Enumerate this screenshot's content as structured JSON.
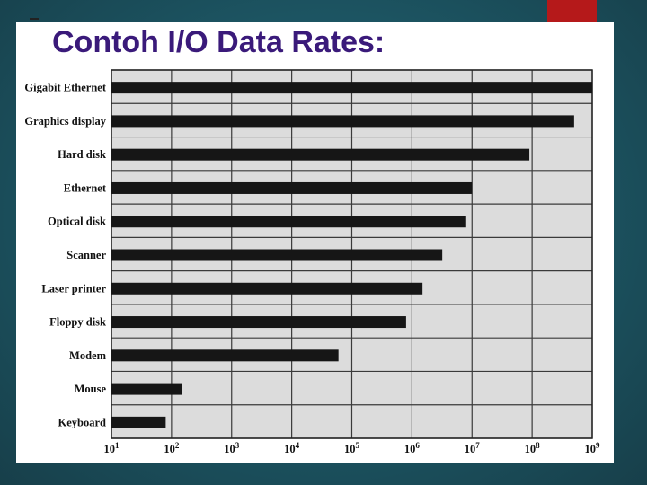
{
  "slide": {
    "title": "Contoh I/O Data Rates:"
  },
  "chart_data": {
    "type": "bar",
    "orientation": "horizontal",
    "scale": "log10",
    "categories": [
      "Gigabit Ethernet",
      "Graphics display",
      "Hard disk",
      "Ethernet",
      "Optical disk",
      "Scanner",
      "Laser printer",
      "Floppy disk",
      "Modem",
      "Mouse",
      "Keyboard"
    ],
    "values": [
      1000000000,
      500000000,
      90000000,
      10000000,
      8000000,
      3200000,
      1500000,
      800000,
      60000,
      150,
      80
    ],
    "xlim": [
      10,
      1000000000
    ],
    "ticks": [
      {
        "base": "10",
        "exp": "1"
      },
      {
        "base": "10",
        "exp": "2"
      },
      {
        "base": "10",
        "exp": "3"
      },
      {
        "base": "10",
        "exp": "4"
      },
      {
        "base": "10",
        "exp": "5"
      },
      {
        "base": "10",
        "exp": "6"
      },
      {
        "base": "10",
        "exp": "7"
      },
      {
        "base": "10",
        "exp": "8"
      },
      {
        "base": "10",
        "exp": "9"
      }
    ],
    "grid": true,
    "colors": {
      "bar": "#161616",
      "plot_bg": "#dcdcdc",
      "grid": "#3a3a3a"
    }
  }
}
